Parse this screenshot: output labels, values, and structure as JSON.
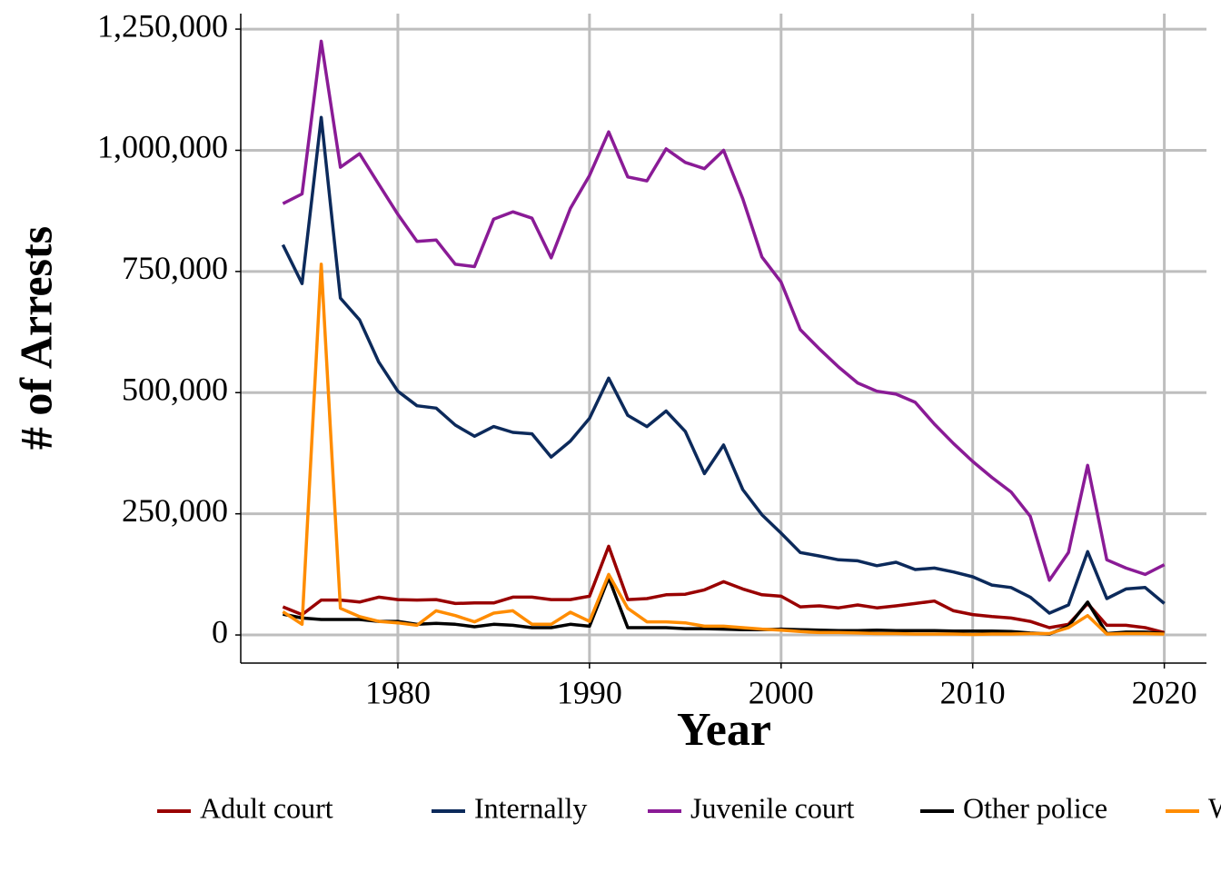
{
  "chart_data": {
    "type": "line",
    "x_label": "Year",
    "y_label": "# of Arrests",
    "x": [
      1974,
      1975,
      1976,
      1977,
      1978,
      1979,
      1980,
      1981,
      1982,
      1983,
      1984,
      1985,
      1986,
      1987,
      1988,
      1989,
      1990,
      1991,
      1992,
      1993,
      1994,
      1995,
      1996,
      1997,
      1998,
      1999,
      2000,
      2001,
      2002,
      2003,
      2004,
      2005,
      2006,
      2007,
      2008,
      2009,
      2010,
      2011,
      2012,
      2013,
      2014,
      2015,
      2016,
      2017,
      2018,
      2019,
      2020
    ],
    "series": [
      {
        "name": "Adult court",
        "color": "#990000",
        "values": [
          58000,
          42000,
          72000,
          72000,
          68000,
          78000,
          73000,
          72000,
          73000,
          65000,
          66000,
          66000,
          78000,
          78000,
          73000,
          73000,
          80000,
          183000,
          73000,
          75000,
          83000,
          84000,
          93000,
          110000,
          95000,
          83000,
          80000,
          58000,
          60000,
          56000,
          62000,
          56000,
          60000,
          65000,
          70000,
          50000,
          42000,
          38000,
          35000,
          28000,
          15000,
          22000,
          65000,
          20000,
          20000,
          15000,
          5000
        ]
      },
      {
        "name": "Internally",
        "color": "#0c2a5b",
        "values": [
          805000,
          725000,
          1068000,
          695000,
          650000,
          563000,
          503000,
          473000,
          468000,
          433000,
          410000,
          430000,
          418000,
          415000,
          367000,
          400000,
          447000,
          530000,
          453000,
          430000,
          462000,
          420000,
          333000,
          392000,
          300000,
          248000,
          210000,
          170000,
          163000,
          155000,
          153000,
          143000,
          150000,
          135000,
          138000,
          130000,
          120000,
          103000,
          98000,
          78000,
          45000,
          62000,
          172000,
          75000,
          95000,
          98000,
          65000
        ]
      },
      {
        "name": "Juvenile court",
        "color": "#8a1b96",
        "values": [
          890000,
          910000,
          1225000,
          965000,
          993000,
          930000,
          868000,
          812000,
          815000,
          765000,
          760000,
          858000,
          873000,
          860000,
          778000,
          880000,
          948000,
          1038000,
          945000,
          937000,
          1003000,
          975000,
          962000,
          1000000,
          900000,
          780000,
          728000,
          630000,
          590000,
          553000,
          520000,
          503000,
          497000,
          480000,
          435000,
          395000,
          358000,
          325000,
          295000,
          245000,
          113000,
          170000,
          350000,
          155000,
          138000,
          125000,
          145000
        ]
      },
      {
        "name": "Other police",
        "color": "#000000",
        "values": [
          43000,
          35000,
          32000,
          32000,
          32000,
          28000,
          28000,
          22000,
          24000,
          22000,
          17000,
          22000,
          20000,
          15000,
          15000,
          22000,
          18000,
          118000,
          15000,
          15000,
          15000,
          13000,
          13000,
          12000,
          11000,
          11000,
          12000,
          11000,
          10000,
          9000,
          9000,
          10000,
          9000,
          9000,
          9000,
          8000,
          8000,
          8000,
          7000,
          4000,
          2000,
          18000,
          68000,
          3000,
          6000,
          6000,
          3000
        ]
      },
      {
        "name": "W",
        "color": "#ff8c00",
        "values": [
          48000,
          22000,
          765000,
          55000,
          38000,
          28000,
          25000,
          20000,
          50000,
          40000,
          27000,
          45000,
          50000,
          22000,
          22000,
          47000,
          28000,
          125000,
          55000,
          27000,
          27000,
          25000,
          18000,
          18000,
          15000,
          12000,
          10000,
          7000,
          5000,
          5000,
          4000,
          3000,
          3000,
          2000,
          2000,
          2000,
          1000,
          2000,
          2000,
          3000,
          3000,
          15000,
          40000,
          2000,
          3000,
          3000,
          2000
        ]
      }
    ],
    "xlim": [
      1971.8,
      2022.2
    ],
    "ylim": [
      -58000,
      1282000
    ],
    "xticks": [
      1980,
      1990,
      2000,
      2010,
      2020
    ],
    "yticks": [
      0,
      {
        "value": 250000,
        "label": "250,000"
      },
      {
        "value": 500000,
        "label": "500,000"
      },
      {
        "value": 750000,
        "label": "750,000"
      },
      {
        "value": 1000000,
        "label": "1,000,000"
      },
      {
        "value": 1250000,
        "label": "1,250,000"
      }
    ],
    "grid": true
  }
}
